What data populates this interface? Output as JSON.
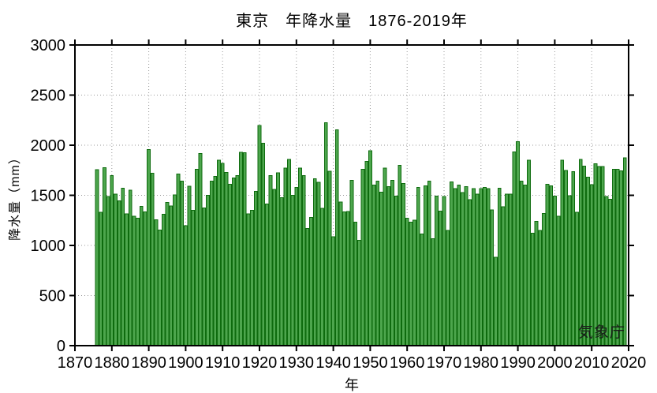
{
  "chart_data": {
    "type": "bar",
    "title": "東京　年降水量　1876-2019年",
    "xlabel": "年",
    "ylabel": "降水量（mm）",
    "watermark": "気象庁",
    "xlim": [
      1870,
      2020
    ],
    "ylim": [
      0,
      3000
    ],
    "x_ticks": [
      1870,
      1880,
      1890,
      1900,
      1910,
      1920,
      1930,
      1940,
      1950,
      1960,
      1970,
      1980,
      1990,
      2000,
      2010,
      2020
    ],
    "y_ticks": [
      0,
      500,
      1000,
      1500,
      2000,
      2500,
      3000
    ],
    "grid": "dotted gray; horizontal at 500-2500, vertical at decades, drawn behind bars",
    "legend": "none",
    "bar_fill_color": "#4DA64D",
    "bar_border_color": "#0E6B0E",
    "axis_color": "#000000",
    "grid_color": "#999999",
    "years": [
      1876,
      1877,
      1878,
      1879,
      1880,
      1881,
      1882,
      1883,
      1884,
      1885,
      1886,
      1887,
      1888,
      1889,
      1890,
      1891,
      1892,
      1893,
      1894,
      1895,
      1896,
      1897,
      1898,
      1899,
      1900,
      1901,
      1902,
      1903,
      1904,
      1905,
      1906,
      1907,
      1908,
      1909,
      1910,
      1911,
      1912,
      1913,
      1914,
      1915,
      1916,
      1917,
      1918,
      1919,
      1920,
      1921,
      1922,
      1923,
      1924,
      1925,
      1926,
      1927,
      1928,
      1929,
      1930,
      1931,
      1932,
      1933,
      1934,
      1935,
      1936,
      1937,
      1938,
      1939,
      1940,
      1941,
      1942,
      1943,
      1944,
      1945,
      1946,
      1947,
      1948,
      1949,
      1950,
      1951,
      1952,
      1953,
      1954,
      1955,
      1956,
      1957,
      1958,
      1959,
      1960,
      1961,
      1962,
      1963,
      1964,
      1965,
      1966,
      1967,
      1968,
      1969,
      1970,
      1971,
      1972,
      1973,
      1974,
      1975,
      1976,
      1977,
      1978,
      1979,
      1980,
      1981,
      1982,
      1983,
      1984,
      1985,
      1986,
      1987,
      1988,
      1989,
      1990,
      1991,
      1992,
      1993,
      1994,
      1995,
      1996,
      1997,
      1998,
      1999,
      2000,
      2001,
      2002,
      2003,
      2004,
      2005,
      2006,
      2007,
      2008,
      2009,
      2010,
      2011,
      2012,
      2013,
      2014,
      2015,
      2016,
      2017,
      2018,
      2019
    ],
    "values": [
      1755,
      1330,
      1775,
      1490,
      1695,
      1510,
      1445,
      1570,
      1313,
      1550,
      1290,
      1270,
      1390,
      1335,
      1958,
      1720,
      1255,
      1155,
      1310,
      1430,
      1395,
      1505,
      1714,
      1641,
      1195,
      1591,
      1349,
      1758,
      1919,
      1375,
      1500,
      1640,
      1690,
      1850,
      1820,
      1727,
      1609,
      1674,
      1695,
      1928,
      1925,
      1315,
      1350,
      1540,
      2195,
      2021,
      1415,
      1695,
      1560,
      1726,
      1475,
      1770,
      1860,
      1501,
      1580,
      1770,
      1698,
      1170,
      1278,
      1664,
      1630,
      1370,
      2224,
      1740,
      1085,
      2153,
      1435,
      1336,
      1340,
      1650,
      1232,
      1050,
      1760,
      1839,
      1943,
      1604,
      1643,
      1531,
      1773,
      1586,
      1648,
      1492,
      1800,
      1617,
      1271,
      1232,
      1253,
      1578,
      1115,
      1596,
      1640,
      1065,
      1492,
      1344,
      1487,
      1148,
      1635,
      1565,
      1604,
      1526,
      1586,
      1455,
      1565,
      1510,
      1565,
      1580,
      1565,
      1355,
      880,
      1570,
      1385,
      1510,
      1513,
      1935,
      2035,
      1640,
      1604,
      1852,
      1123,
      1240,
      1148,
      1318,
      1609,
      1596,
      1492,
      1292,
      1852,
      1748,
      1495,
      1735,
      1330,
      1858,
      1790,
      1680,
      1605,
      1815,
      1787,
      1787,
      1487,
      1460,
      1760,
      1760,
      1745,
      1874
    ]
  }
}
